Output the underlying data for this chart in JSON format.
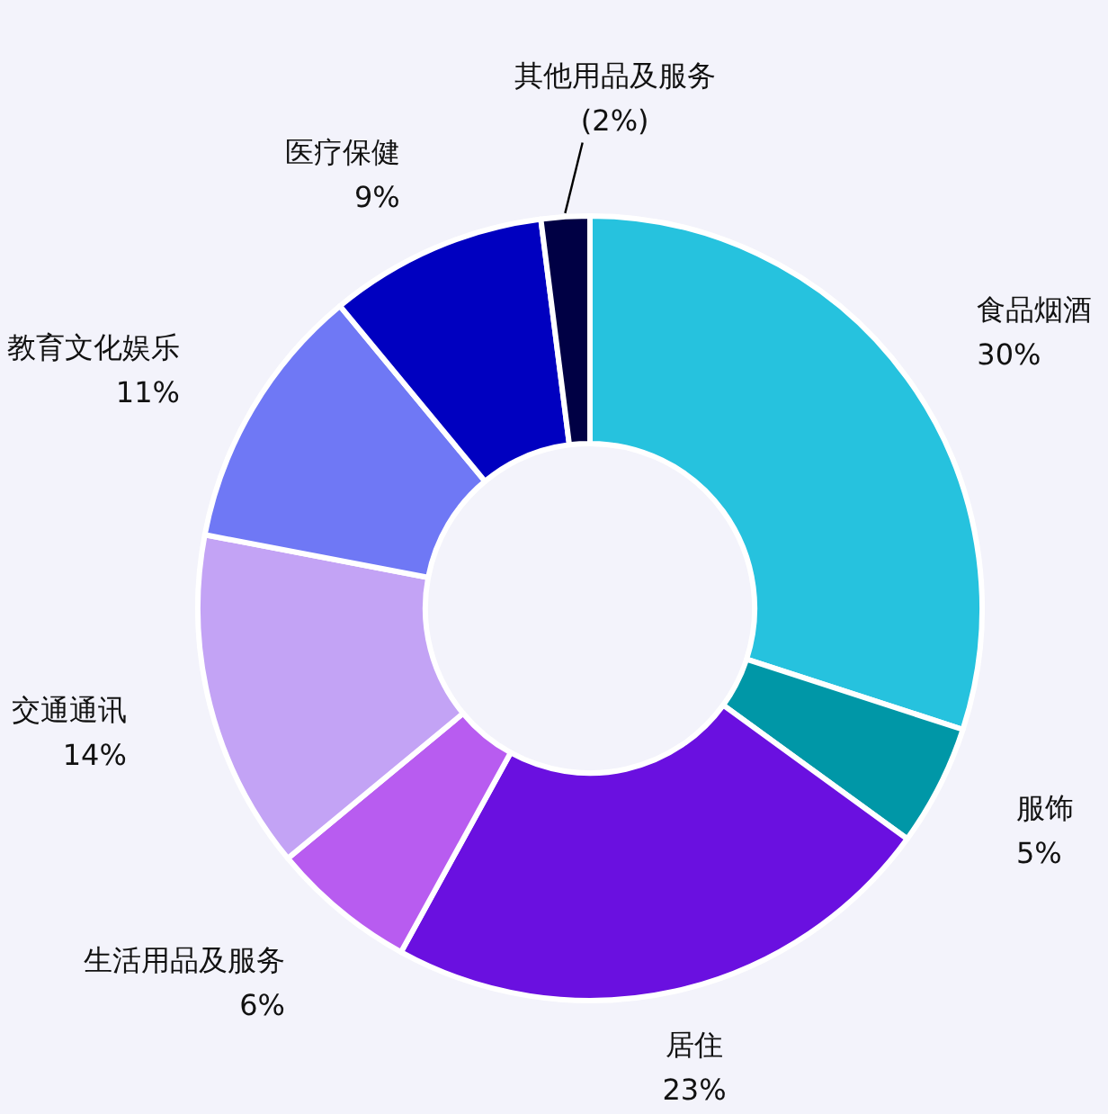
{
  "chart_data": {
    "type": "donut",
    "categories": [
      "食品烟酒",
      "服饰",
      "居住",
      "生活用品及服务",
      "交通通讯",
      "教育文化娱乐",
      "医疗保健",
      "其他用品及服务"
    ],
    "values": [
      30,
      5,
      23,
      6,
      14,
      11,
      9,
      2
    ],
    "colors": [
      "#26c2de",
      "#0097a7",
      "#6a10e0",
      "#b85cf0",
      "#c3a3f5",
      "#6f78f5",
      "#0000c0",
      "#000044"
    ],
    "value_labels": [
      "30%",
      "5%",
      "23%",
      "6%",
      "14%",
      "11%",
      "9%",
      "(2%)"
    ]
  }
}
